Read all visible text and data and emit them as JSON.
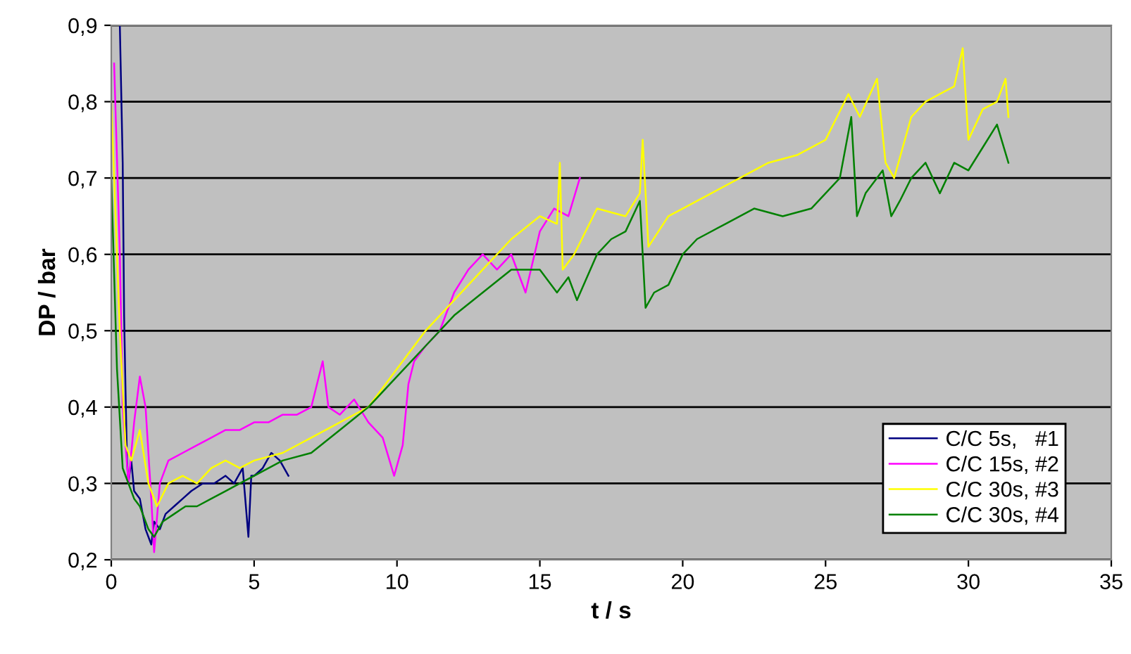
{
  "chart_data": {
    "type": "line",
    "xlabel": "t / s",
    "ylabel": "DP / bar",
    "xlim": [
      0,
      35
    ],
    "xticks": [
      0,
      5,
      10,
      15,
      20,
      25,
      30,
      35
    ],
    "ylim": [
      0.2,
      0.9
    ],
    "yticks": [
      {
        "value": 0.2,
        "label": "0,2"
      },
      {
        "value": 0.3,
        "label": "0,3"
      },
      {
        "value": 0.4,
        "label": "0,4"
      },
      {
        "value": 0.5,
        "label": "0,5"
      },
      {
        "value": 0.6,
        "label": "0,6"
      },
      {
        "value": 0.7,
        "label": "0,7"
      },
      {
        "value": 0.8,
        "label": "0,8"
      },
      {
        "value": 0.9,
        "label": "0,9"
      }
    ],
    "grid": "y",
    "legend": "bottom right",
    "marker": "none",
    "line_style": "solid",
    "series": [
      {
        "name": "C/C 5s,   #1",
        "color": "#000080",
        "x": [
          0.3,
          0.4,
          0.45,
          0.5,
          0.55,
          0.6,
          0.7,
          0.8,
          1.0,
          1.2,
          1.4,
          1.5,
          1.7,
          1.9,
          2.2,
          2.5,
          2.8,
          3.2,
          3.6,
          4.0,
          4.3,
          4.6,
          4.8,
          4.9,
          5.0,
          5.3,
          5.6,
          5.9,
          6.2
        ],
        "values": [
          0.9,
          0.72,
          0.52,
          0.42,
          0.33,
          0.3,
          0.33,
          0.29,
          0.28,
          0.24,
          0.22,
          0.25,
          0.24,
          0.26,
          0.27,
          0.28,
          0.29,
          0.3,
          0.3,
          0.31,
          0.3,
          0.32,
          0.23,
          0.31,
          0.31,
          0.32,
          0.34,
          0.33,
          0.31
        ]
      },
      {
        "name": "C/C 15s, #2",
        "color": "#ff00ff",
        "x": [
          0.1,
          0.3,
          0.4,
          0.6,
          0.8,
          1.0,
          1.2,
          1.4,
          1.5,
          1.7,
          2.0,
          2.5,
          3.0,
          3.5,
          4.0,
          4.5,
          5.0,
          5.5,
          6.0,
          6.5,
          7.0,
          7.4,
          7.6,
          8.0,
          8.5,
          9.0,
          9.5,
          9.9,
          10.2,
          10.4,
          10.6,
          11.0,
          11.5,
          12.0,
          12.5,
          13.0,
          13.5,
          14.0,
          14.5,
          15.0,
          15.5,
          16.0,
          16.4
        ],
        "values": [
          0.85,
          0.6,
          0.4,
          0.3,
          0.38,
          0.44,
          0.4,
          0.28,
          0.21,
          0.3,
          0.33,
          0.34,
          0.35,
          0.36,
          0.37,
          0.37,
          0.38,
          0.38,
          0.39,
          0.39,
          0.4,
          0.46,
          0.4,
          0.39,
          0.41,
          0.38,
          0.36,
          0.31,
          0.35,
          0.43,
          0.46,
          0.48,
          0.5,
          0.55,
          0.58,
          0.6,
          0.58,
          0.6,
          0.55,
          0.63,
          0.66,
          0.65,
          0.7
        ]
      },
      {
        "name": "C/C 30s, #3",
        "color": "#ffff00",
        "x": [
          0.0,
          0.3,
          0.5,
          0.7,
          1.0,
          1.3,
          1.6,
          2.0,
          2.5,
          3.0,
          3.5,
          4.0,
          4.5,
          5.0,
          6.0,
          7.0,
          8.0,
          9.0,
          10.0,
          11.0,
          12.0,
          13.0,
          14.0,
          15.0,
          15.6,
          15.7,
          15.8,
          16.2,
          17.0,
          18.0,
          18.5,
          18.6,
          18.8,
          19.5,
          20.0,
          21.0,
          22.0,
          23.0,
          24.0,
          25.0,
          25.8,
          26.2,
          26.8,
          27.1,
          27.4,
          28.0,
          28.5,
          29.0,
          29.5,
          29.8,
          30.0,
          30.5,
          31.0,
          31.3,
          31.4
        ],
        "values": [
          0.8,
          0.5,
          0.35,
          0.33,
          0.37,
          0.3,
          0.27,
          0.3,
          0.31,
          0.3,
          0.32,
          0.33,
          0.32,
          0.33,
          0.34,
          0.36,
          0.38,
          0.4,
          0.45,
          0.5,
          0.54,
          0.58,
          0.62,
          0.65,
          0.64,
          0.72,
          0.58,
          0.6,
          0.66,
          0.65,
          0.68,
          0.75,
          0.61,
          0.65,
          0.66,
          0.68,
          0.7,
          0.72,
          0.73,
          0.75,
          0.81,
          0.78,
          0.83,
          0.72,
          0.7,
          0.78,
          0.8,
          0.81,
          0.82,
          0.87,
          0.75,
          0.79,
          0.8,
          0.83,
          0.78
        ]
      },
      {
        "name": "C/C 30s, #4",
        "color": "#008000",
        "x": [
          0.0,
          0.2,
          0.4,
          0.6,
          0.8,
          1.0,
          1.3,
          1.5,
          1.8,
          2.2,
          2.6,
          3.0,
          3.5,
          4.0,
          4.5,
          5.0,
          6.0,
          7.0,
          8.0,
          9.0,
          10.0,
          11.0,
          12.0,
          13.0,
          14.0,
          15.0,
          15.6,
          16.0,
          16.3,
          17.0,
          17.5,
          18.0,
          18.5,
          18.7,
          19.0,
          19.5,
          20.0,
          20.5,
          21.5,
          22.5,
          23.5,
          24.5,
          25.5,
          25.9,
          26.1,
          26.4,
          27.0,
          27.3,
          27.6,
          28.0,
          28.5,
          29.0,
          29.5,
          30.0,
          30.5,
          31.0,
          31.4
        ],
        "values": [
          0.7,
          0.45,
          0.32,
          0.3,
          0.28,
          0.27,
          0.24,
          0.23,
          0.25,
          0.26,
          0.27,
          0.27,
          0.28,
          0.29,
          0.3,
          0.31,
          0.33,
          0.34,
          0.37,
          0.4,
          0.44,
          0.48,
          0.52,
          0.55,
          0.58,
          0.58,
          0.55,
          0.57,
          0.54,
          0.6,
          0.62,
          0.63,
          0.67,
          0.53,
          0.55,
          0.56,
          0.6,
          0.62,
          0.64,
          0.66,
          0.65,
          0.66,
          0.7,
          0.78,
          0.65,
          0.68,
          0.71,
          0.65,
          0.67,
          0.7,
          0.72,
          0.68,
          0.72,
          0.71,
          0.74,
          0.77,
          0.72
        ]
      }
    ]
  }
}
